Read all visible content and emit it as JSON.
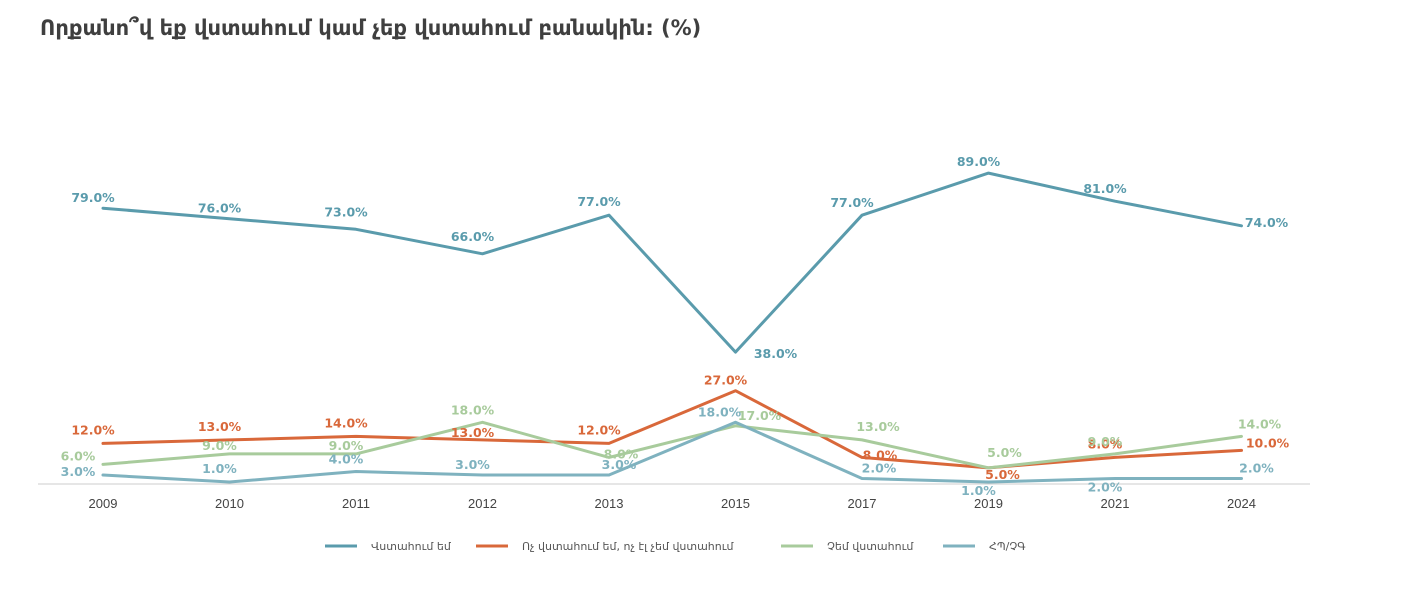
{
  "chart_data": {
    "type": "line",
    "title": "Որքանո՞վ եք վստահում կամ չեք վստահում բանակին: (%)",
    "categories": [
      "2009",
      "2010",
      "2011",
      "2012",
      "2013",
      "2015",
      "2017",
      "2019",
      "2021",
      "2024"
    ],
    "ylim": [
      0,
      100
    ],
    "grid": false,
    "legend_position": "bottom",
    "series": [
      {
        "name": "Վստահում եմ",
        "color": "#5a9bac",
        "values": [
          79.0,
          76.0,
          73.0,
          66.0,
          77.0,
          38.0,
          77.0,
          89.0,
          81.0,
          74.0
        ]
      },
      {
        "name": "Ոչ վստահում եմ, ոչ էլ չեմ վստահում",
        "color": "#d9683a",
        "values": [
          12.0,
          13.0,
          14.0,
          13.0,
          12.0,
          27.0,
          8.0,
          5.0,
          8.0,
          10.0
        ]
      },
      {
        "name": "Չեմ վստահում",
        "color": "#a8cb9c",
        "values": [
          6.0,
          9.0,
          9.0,
          18.0,
          8.0,
          17.0,
          13.0,
          5.0,
          9.0,
          14.0
        ]
      },
      {
        "name": "ՀՊ/ՉԳ",
        "color": "#7fb2bf",
        "values": [
          3.0,
          1.0,
          4.0,
          3.0,
          3.0,
          18.0,
          2.0,
          1.0,
          2.0,
          2.0
        ]
      }
    ]
  }
}
